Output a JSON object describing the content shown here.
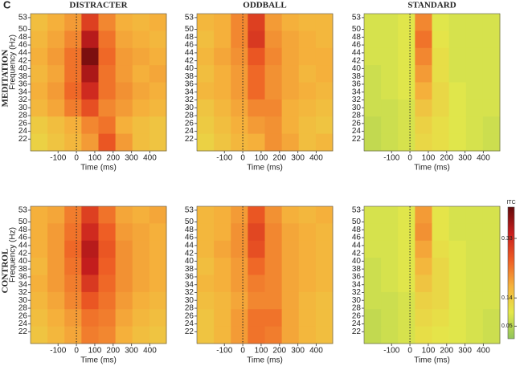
{
  "panel_label": "C",
  "colorbar": {
    "label": "ITC",
    "lim": [
      0.01,
      0.43
    ],
    "ticks": [
      0.05,
      0.14,
      0.33
    ]
  },
  "chart_data": [
    {
      "type": "heatmap",
      "title": "DISTRACTER",
      "row_label": "MEDITATION",
      "xlabel": "Time (ms)",
      "ylabel": "Frequency (Hz)",
      "xlim": [
        -250,
        490
      ],
      "xticks": [
        -100,
        0,
        100,
        200,
        300,
        400
      ],
      "ylim": [
        19,
        54
      ],
      "yticks": [
        22,
        24,
        26,
        28,
        30,
        32,
        34,
        36,
        38,
        40,
        42,
        44,
        46,
        48,
        50,
        53
      ],
      "vline": 0,
      "z": [
        [
          0.16,
          0.18,
          0.2,
          0.3,
          0.22,
          0.18,
          0.17,
          0.18
        ],
        [
          0.17,
          0.19,
          0.22,
          0.36,
          0.24,
          0.19,
          0.18,
          0.17
        ],
        [
          0.18,
          0.2,
          0.24,
          0.41,
          0.25,
          0.2,
          0.19,
          0.18
        ],
        [
          0.17,
          0.19,
          0.24,
          0.37,
          0.24,
          0.2,
          0.18,
          0.19
        ],
        [
          0.18,
          0.2,
          0.25,
          0.33,
          0.24,
          0.21,
          0.19,
          0.18
        ],
        [
          0.17,
          0.19,
          0.23,
          0.28,
          0.22,
          0.2,
          0.18,
          0.17
        ],
        [
          0.14,
          0.16,
          0.18,
          0.22,
          0.24,
          0.18,
          0.16,
          0.15
        ],
        [
          0.13,
          0.15,
          0.17,
          0.2,
          0.27,
          0.2,
          0.16,
          0.15
        ]
      ]
    },
    {
      "type": "heatmap",
      "title": "ODDBALL",
      "xlabel": "Time (ms)",
      "xlim": [
        -250,
        490
      ],
      "xticks": [
        -100,
        0,
        100,
        200,
        300,
        400
      ],
      "ylim": [
        19,
        54
      ],
      "yticks": [
        22,
        24,
        26,
        28,
        30,
        32,
        34,
        36,
        38,
        40,
        42,
        44,
        46,
        48,
        50,
        53
      ],
      "vline": 0,
      "z": [
        [
          0.17,
          0.18,
          0.22,
          0.3,
          0.2,
          0.18,
          0.17,
          0.17
        ],
        [
          0.16,
          0.18,
          0.22,
          0.31,
          0.21,
          0.19,
          0.18,
          0.17
        ],
        [
          0.17,
          0.19,
          0.21,
          0.27,
          0.22,
          0.19,
          0.18,
          0.18
        ],
        [
          0.16,
          0.18,
          0.2,
          0.25,
          0.21,
          0.19,
          0.17,
          0.18
        ],
        [
          0.17,
          0.18,
          0.2,
          0.25,
          0.21,
          0.19,
          0.18,
          0.17
        ],
        [
          0.15,
          0.17,
          0.19,
          0.22,
          0.22,
          0.18,
          0.17,
          0.16
        ],
        [
          0.14,
          0.16,
          0.18,
          0.2,
          0.21,
          0.18,
          0.16,
          0.15
        ],
        [
          0.13,
          0.15,
          0.17,
          0.18,
          0.21,
          0.19,
          0.16,
          0.17
        ]
      ]
    },
    {
      "type": "heatmap",
      "title": "STANDARD",
      "xlabel": "Time (ms)",
      "xlim": [
        -250,
        490
      ],
      "xticks": [
        -100,
        0,
        100,
        200,
        300,
        400
      ],
      "ylim": [
        19,
        54
      ],
      "yticks": [
        22,
        24,
        26,
        28,
        30,
        32,
        34,
        36,
        38,
        40,
        42,
        44,
        46,
        48,
        50,
        53
      ],
      "vline": 0,
      "z": [
        [
          0.08,
          0.08,
          0.09,
          0.22,
          0.09,
          0.08,
          0.08,
          0.08
        ],
        [
          0.08,
          0.08,
          0.09,
          0.24,
          0.1,
          0.08,
          0.08,
          0.08
        ],
        [
          0.08,
          0.08,
          0.09,
          0.22,
          0.11,
          0.08,
          0.08,
          0.08
        ],
        [
          0.07,
          0.08,
          0.09,
          0.2,
          0.11,
          0.08,
          0.08,
          0.08
        ],
        [
          0.07,
          0.08,
          0.09,
          0.18,
          0.12,
          0.09,
          0.08,
          0.08
        ],
        [
          0.07,
          0.07,
          0.08,
          0.15,
          0.12,
          0.09,
          0.08,
          0.08
        ],
        [
          0.06,
          0.07,
          0.08,
          0.13,
          0.11,
          0.09,
          0.08,
          0.07
        ],
        [
          0.06,
          0.07,
          0.08,
          0.12,
          0.11,
          0.09,
          0.08,
          0.07
        ]
      ]
    },
    {
      "type": "heatmap",
      "row_label": "CONTROL",
      "xlabel": "Time (ms)",
      "ylabel": "Frequency (Hz)",
      "xlim": [
        -250,
        490
      ],
      "xticks": [
        -100,
        0,
        100,
        200,
        300,
        400
      ],
      "ylim": [
        19,
        54
      ],
      "yticks": [
        22,
        24,
        26,
        28,
        30,
        32,
        34,
        36,
        38,
        40,
        42,
        44,
        46,
        48,
        50,
        53
      ],
      "vline": 0,
      "z": [
        [
          0.18,
          0.19,
          0.23,
          0.3,
          0.24,
          0.19,
          0.18,
          0.19
        ],
        [
          0.18,
          0.2,
          0.24,
          0.33,
          0.26,
          0.2,
          0.19,
          0.18
        ],
        [
          0.18,
          0.2,
          0.25,
          0.36,
          0.27,
          0.21,
          0.19,
          0.18
        ],
        [
          0.17,
          0.2,
          0.24,
          0.35,
          0.26,
          0.21,
          0.19,
          0.18
        ],
        [
          0.18,
          0.2,
          0.23,
          0.31,
          0.25,
          0.21,
          0.19,
          0.18
        ],
        [
          0.17,
          0.19,
          0.22,
          0.27,
          0.24,
          0.2,
          0.18,
          0.17
        ],
        [
          0.16,
          0.18,
          0.2,
          0.24,
          0.23,
          0.19,
          0.17,
          0.16
        ],
        [
          0.15,
          0.17,
          0.19,
          0.23,
          0.22,
          0.18,
          0.16,
          0.15
        ]
      ]
    },
    {
      "type": "heatmap",
      "xlabel": "Time (ms)",
      "xlim": [
        -250,
        490
      ],
      "xticks": [
        -100,
        0,
        100,
        200,
        300,
        400
      ],
      "ylim": [
        19,
        54
      ],
      "yticks": [
        22,
        24,
        26,
        28,
        30,
        32,
        34,
        36,
        38,
        40,
        42,
        44,
        46,
        48,
        50,
        53
      ],
      "vline": 0,
      "z": [
        [
          0.17,
          0.18,
          0.2,
          0.27,
          0.21,
          0.18,
          0.17,
          0.18
        ],
        [
          0.17,
          0.18,
          0.21,
          0.29,
          0.22,
          0.19,
          0.18,
          0.17
        ],
        [
          0.17,
          0.19,
          0.21,
          0.28,
          0.22,
          0.19,
          0.18,
          0.17
        ],
        [
          0.16,
          0.18,
          0.2,
          0.25,
          0.22,
          0.19,
          0.18,
          0.17
        ],
        [
          0.17,
          0.18,
          0.2,
          0.23,
          0.22,
          0.19,
          0.18,
          0.17
        ],
        [
          0.16,
          0.17,
          0.19,
          0.22,
          0.22,
          0.19,
          0.17,
          0.16
        ],
        [
          0.15,
          0.17,
          0.2,
          0.24,
          0.24,
          0.19,
          0.17,
          0.16
        ],
        [
          0.15,
          0.17,
          0.2,
          0.24,
          0.23,
          0.19,
          0.17,
          0.16
        ]
      ]
    },
    {
      "type": "heatmap",
      "xlabel": "Time (ms)",
      "xlim": [
        -250,
        490
      ],
      "xticks": [
        -100,
        0,
        100,
        200,
        300,
        400
      ],
      "ylim": [
        19,
        54
      ],
      "yticks": [
        22,
        24,
        26,
        28,
        30,
        32,
        34,
        36,
        38,
        40,
        42,
        44,
        46,
        48,
        50,
        53
      ],
      "vline": 0,
      "z": [
        [
          0.08,
          0.08,
          0.09,
          0.2,
          0.1,
          0.08,
          0.08,
          0.08
        ],
        [
          0.08,
          0.08,
          0.09,
          0.21,
          0.1,
          0.08,
          0.08,
          0.08
        ],
        [
          0.08,
          0.08,
          0.09,
          0.19,
          0.11,
          0.09,
          0.08,
          0.08
        ],
        [
          0.07,
          0.08,
          0.09,
          0.17,
          0.12,
          0.09,
          0.08,
          0.08
        ],
        [
          0.07,
          0.08,
          0.09,
          0.15,
          0.12,
          0.09,
          0.08,
          0.08
        ],
        [
          0.07,
          0.07,
          0.08,
          0.13,
          0.12,
          0.09,
          0.08,
          0.08
        ],
        [
          0.06,
          0.07,
          0.08,
          0.12,
          0.11,
          0.09,
          0.08,
          0.07
        ],
        [
          0.06,
          0.07,
          0.08,
          0.11,
          0.1,
          0.09,
          0.08,
          0.07
        ]
      ]
    }
  ]
}
